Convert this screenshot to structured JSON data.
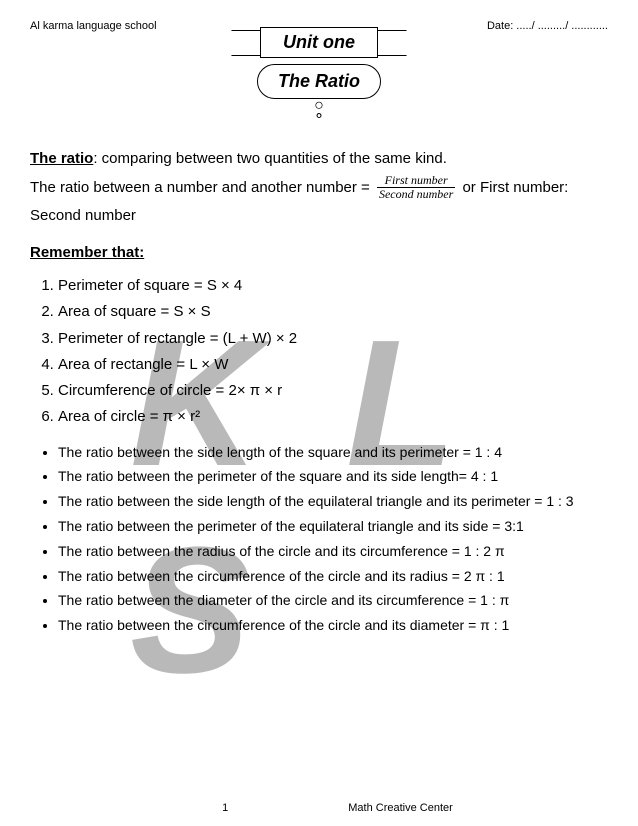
{
  "header": {
    "school": "Al karma language school",
    "date_label": "Date: ...../ ........./ ............"
  },
  "banner": {
    "unit": "Unit one",
    "topic": "The Ratio"
  },
  "definition": {
    "label": "The ratio",
    "text": ": comparing between two quantities of the same kind."
  },
  "formula_intro": "The ratio between a number and another number = ",
  "fraction": {
    "num": "First number",
    "den": "Second number"
  },
  "formula_after": " or    First number: Second number",
  "remember_label": "Remember that:",
  "formulas": [
    "Perimeter of square = S × 4",
    "Area of square = S × S",
    "Perimeter of rectangle = (L + W) × 2",
    "Area of rectangle = L × W",
    "Circumference of circle = 2× π × r",
    "Area of circle = π × r²"
  ],
  "bullets": [
    "The ratio between the side length of the square and its perimeter = 1 : 4",
    "The ratio between the perimeter of the square and its side length= 4 : 1",
    "The ratio between the side length of the equilateral triangle and its perimeter = 1 : 3",
    "The ratio between the perimeter of the equilateral triangle and its side = 3:1",
    "The ratio between the radius of the circle and its circumference = 1 : 2 π",
    "The ratio between the circumference of the circle and its radius = 2 π : 1",
    "The ratio between the diameter of the circle and its circumference = 1 : π",
    "The ratio between the circumference of the circle and its diameter = π : 1"
  ],
  "footer": {
    "page": "1",
    "center": "Math Creative Center"
  },
  "watermark": "K L S"
}
